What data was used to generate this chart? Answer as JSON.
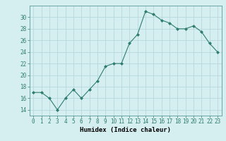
{
  "x": [
    0,
    1,
    2,
    3,
    4,
    5,
    6,
    7,
    8,
    9,
    10,
    11,
    12,
    13,
    14,
    15,
    16,
    17,
    18,
    19,
    20,
    21,
    22,
    23
  ],
  "y": [
    17,
    17,
    16,
    14,
    16,
    17.5,
    16,
    17.5,
    19,
    21.5,
    22,
    22,
    25.5,
    27,
    31,
    30.5,
    29.5,
    29,
    28,
    28,
    28.5,
    27.5,
    25.5,
    24
  ],
  "line_color": "#2e7d6e",
  "marker_color": "#2e7d6e",
  "bg_color": "#d5eef0",
  "grid_color": "#b8d8dc",
  "xlabel": "Humidex (Indice chaleur)",
  "ylim": [
    13,
    32
  ],
  "xlim": [
    -0.5,
    23.5
  ],
  "yticks": [
    14,
    16,
    18,
    20,
    22,
    24,
    26,
    28,
    30
  ],
  "xtick_labels": [
    "0",
    "1",
    "2",
    "3",
    "4",
    "5",
    "6",
    "7",
    "8",
    "9",
    "10",
    "11",
    "12",
    "13",
    "14",
    "15",
    "16",
    "17",
    "18",
    "19",
    "20",
    "21",
    "22",
    "23"
  ],
  "label_fontsize": 6.5,
  "tick_fontsize": 5.5
}
